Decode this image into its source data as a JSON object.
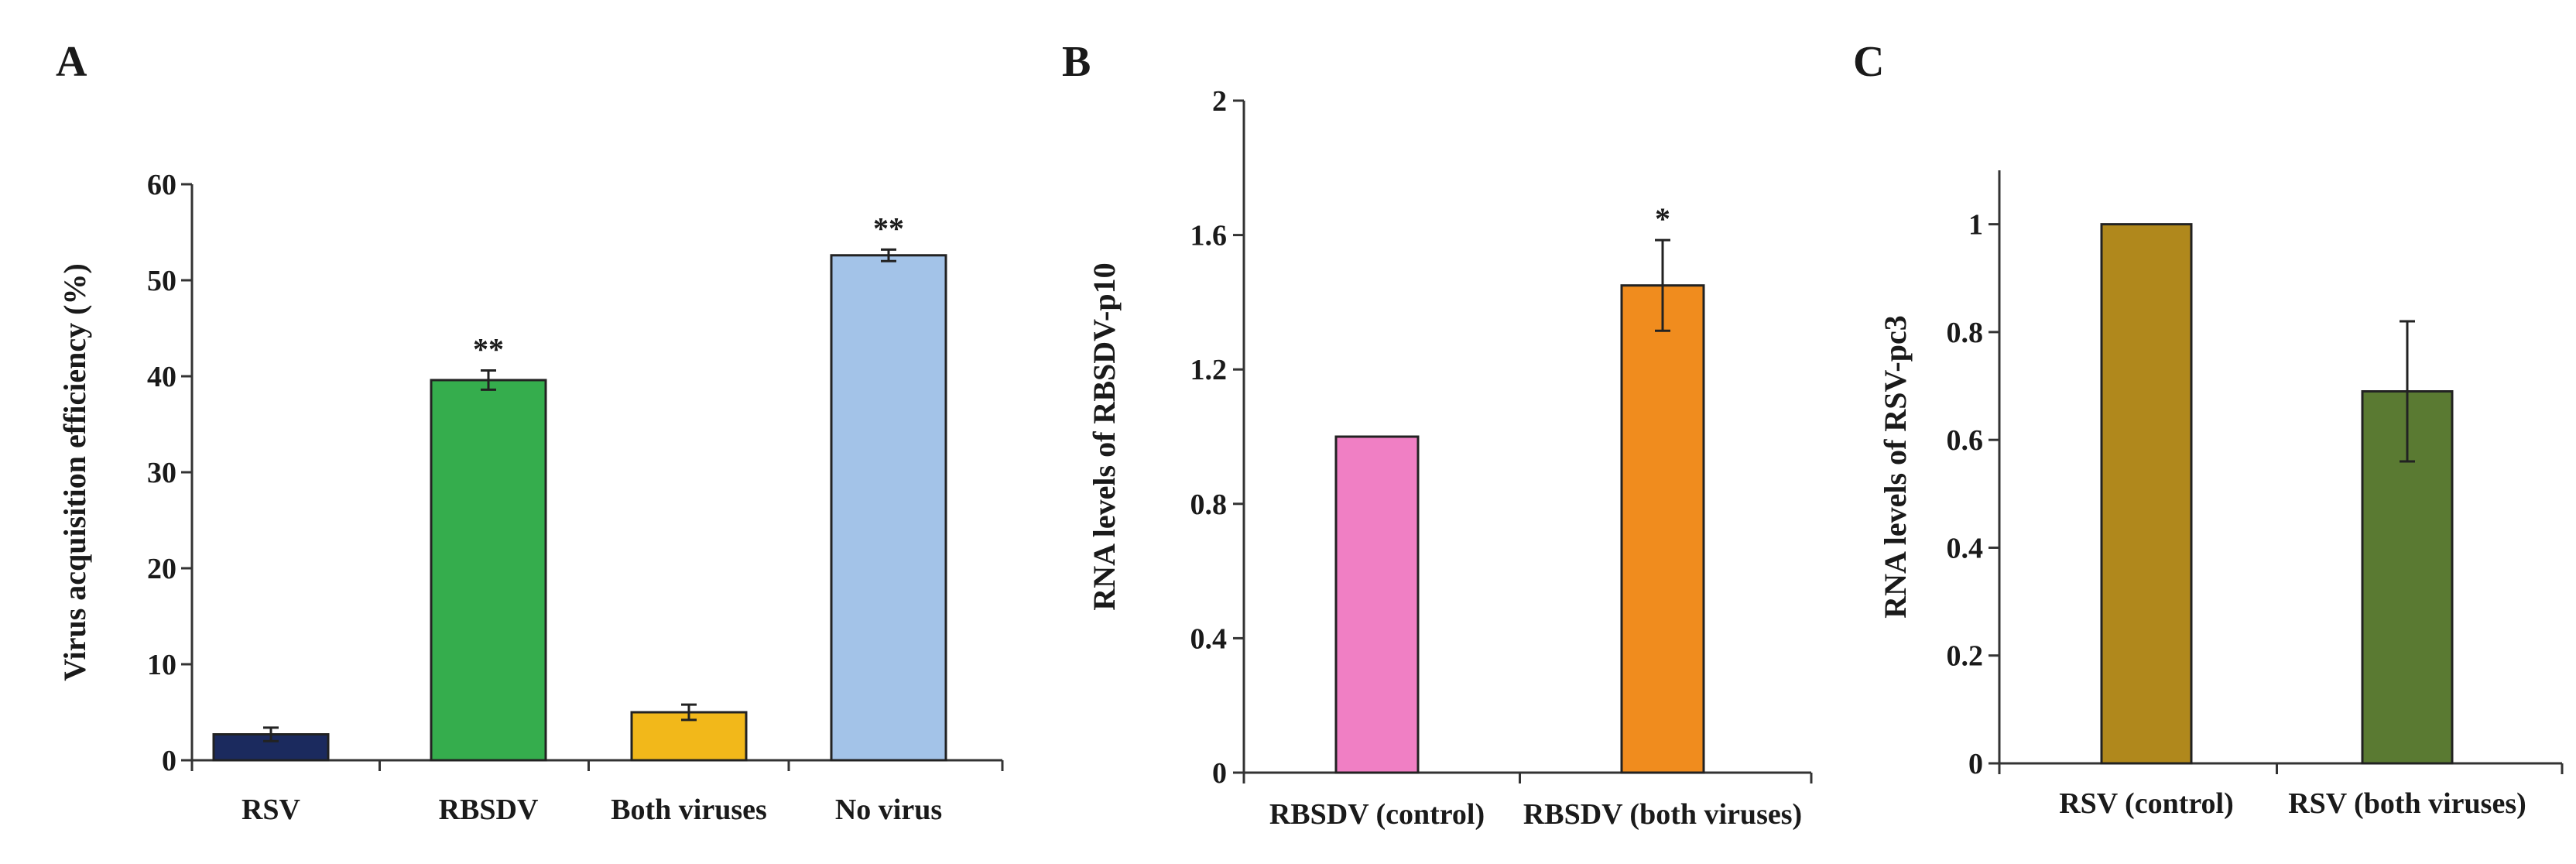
{
  "chart_data": [
    {
      "panel": "A",
      "type": "bar",
      "ylabel": "Virus acquisition efficiency (%)",
      "xlabel": "",
      "ylim": [
        0,
        60
      ],
      "yticks": [
        0,
        10,
        20,
        30,
        40,
        50,
        60
      ],
      "ytick_labels": [
        "0",
        "10",
        "20",
        "30",
        "40",
        "50",
        "60"
      ],
      "categories": [
        "RSV",
        "RBSDV",
        "Both viruses",
        "No virus"
      ],
      "values": [
        2.7,
        39.6,
        5.0,
        52.6
      ],
      "errors": [
        0.7,
        1.0,
        0.8,
        0.6
      ],
      "significance": [
        "",
        "**",
        "",
        "**"
      ],
      "colors": [
        "#1b2a5e",
        "#35ad4d",
        "#f2b81a",
        "#a3c3e8"
      ]
    },
    {
      "panel": "B",
      "type": "bar",
      "ylabel": "RNA levels of RBSDV-p10",
      "xlabel": "",
      "ylim": [
        0,
        2
      ],
      "yticks": [
        0,
        0.4,
        0.8,
        1.2,
        1.6,
        2
      ],
      "ytick_labels": [
        "0",
        "0.4",
        "0.8",
        "1.2",
        "1.6",
        "2"
      ],
      "categories": [
        "RBSDV (control)",
        "RBSDV (both viruses)"
      ],
      "values": [
        1.0,
        1.45
      ],
      "errors": [
        0,
        0.135
      ],
      "significance": [
        "",
        "*"
      ],
      "colors": [
        "#f07fc4",
        "#f08c1e"
      ]
    },
    {
      "panel": "C",
      "type": "bar",
      "ylabel": "RNA levels of RSV-pc3",
      "xlabel": "",
      "ylim": [
        0,
        1.1
      ],
      "yticks": [
        0,
        0.2,
        0.4,
        0.6,
        0.8,
        1
      ],
      "ytick_labels": [
        "0",
        "0.2",
        "0.4",
        "0.6",
        "0.8",
        "1"
      ],
      "categories": [
        "RSV (control)",
        "RSV (both viruses)"
      ],
      "values": [
        1.0,
        0.69
      ],
      "errors": [
        0,
        0.13
      ],
      "significance": [
        "",
        ""
      ],
      "colors": [
        "#b0881c",
        "#5a7a32"
      ]
    }
  ]
}
